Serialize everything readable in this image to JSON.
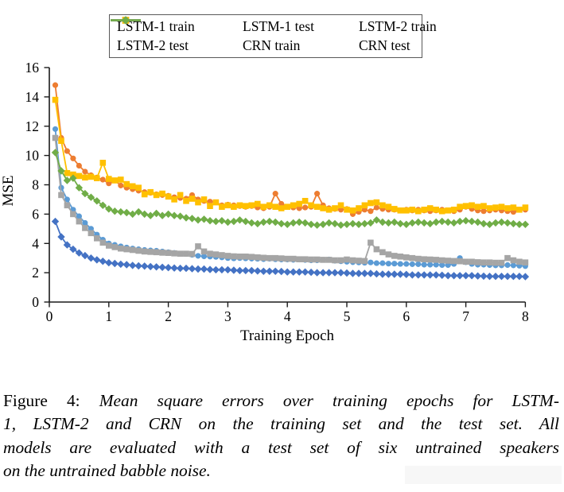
{
  "caption": {
    "prefix": "Figure 4:",
    "lines": [
      "Mean square errors over training epochs for LSTM-",
      "1, LSTM-2 and CRN on the training set and the test set. All",
      "models are evaluated with a test set of six untrained speakers",
      "on the untrained babble noise."
    ]
  },
  "chart_data": {
    "type": "line",
    "title": "",
    "xlabel": "Training Epoch",
    "ylabel": "MSE",
    "xlim": [
      0,
      8
    ],
    "ylim": [
      0,
      16
    ],
    "x_ticks": [
      0,
      1,
      2,
      3,
      4,
      5,
      6,
      7,
      8
    ],
    "y_ticks": [
      0,
      2,
      4,
      6,
      8,
      10,
      12,
      14,
      16
    ],
    "grid": false,
    "legend_position": "top",
    "axis_color": "#1a1a1a",
    "legend_border_color": "#595959",
    "x_start": 0.1,
    "x_step": 0.1,
    "series": [
      {
        "name": "LSTM-1 train",
        "color": "#5B9BD5",
        "marker": "circle",
        "values": [
          11.8,
          7.8,
          7.0,
          6.3,
          5.85,
          5.4,
          5.0,
          4.6,
          4.25,
          4.0,
          3.9,
          3.8,
          3.72,
          3.65,
          3.6,
          3.55,
          3.52,
          3.5,
          3.45,
          3.4,
          3.35,
          3.3,
          3.28,
          3.22,
          3.15,
          3.12,
          3.1,
          3.08,
          3.05,
          3.0,
          2.98,
          3.0,
          2.98,
          2.96,
          2.95,
          2.93,
          2.95,
          2.92,
          2.9,
          2.9,
          2.88,
          2.9,
          2.87,
          2.85,
          2.85,
          2.88,
          2.9,
          2.82,
          2.78,
          2.75,
          2.72,
          2.7,
          2.68,
          2.7,
          2.65,
          2.65,
          2.62,
          2.62,
          2.6,
          2.6,
          2.58,
          2.58,
          2.55,
          2.55,
          2.55,
          2.52,
          2.52,
          2.6,
          3.0,
          2.72,
          2.6,
          2.55,
          2.55,
          2.52,
          2.5,
          2.5,
          2.52,
          2.5,
          2.48,
          2.45
        ]
      },
      {
        "name": "LSTM-1 test",
        "color": "#ED7D31",
        "marker": "circle",
        "values": [
          14.8,
          11.2,
          10.3,
          9.8,
          9.3,
          8.9,
          8.65,
          8.5,
          8.35,
          8.1,
          8.3,
          7.95,
          7.8,
          7.7,
          7.6,
          7.5,
          7.45,
          7.35,
          7.3,
          7.25,
          7.15,
          7.1,
          7.05,
          7.3,
          7.0,
          6.9,
          6.85,
          6.8,
          6.6,
          6.65,
          6.6,
          6.55,
          6.5,
          6.55,
          6.45,
          6.4,
          6.5,
          7.4,
          6.7,
          6.5,
          6.45,
          6.4,
          6.45,
          6.5,
          7.4,
          6.6,
          6.4,
          6.35,
          6.3,
          6.35,
          6.0,
          6.15,
          6.3,
          6.2,
          6.45,
          6.35,
          6.3,
          6.3,
          6.25,
          6.3,
          6.25,
          6.3,
          6.25,
          6.2,
          6.25,
          6.3,
          6.25,
          6.2,
          6.3,
          6.5,
          6.35,
          6.25,
          6.2,
          6.25,
          6.3,
          6.25,
          6.2,
          6.15,
          6.3,
          6.3
        ]
      },
      {
        "name": "LSTM-2 train",
        "color": "#A5A5A5",
        "marker": "square",
        "values": [
          11.2,
          7.3,
          6.6,
          6.0,
          5.5,
          5.05,
          4.7,
          4.35,
          4.05,
          3.85,
          3.75,
          3.65,
          3.6,
          3.55,
          3.5,
          3.45,
          3.42,
          3.4,
          3.37,
          3.35,
          3.32,
          3.3,
          3.3,
          3.28,
          3.8,
          3.45,
          3.3,
          3.25,
          3.2,
          3.15,
          3.12,
          3.1,
          3.1,
          3.08,
          3.05,
          3.02,
          3.0,
          3.0,
          2.98,
          2.95,
          2.95,
          2.92,
          2.92,
          2.9,
          2.9,
          2.88,
          2.88,
          2.85,
          2.85,
          2.9,
          2.85,
          2.82,
          2.8,
          4.05,
          3.6,
          3.4,
          3.25,
          3.15,
          3.1,
          3.05,
          3.0,
          2.95,
          2.92,
          2.9,
          2.88,
          2.85,
          2.82,
          2.8,
          2.78,
          2.75,
          2.75,
          2.72,
          2.7,
          2.7,
          2.68,
          2.68,
          3.0,
          2.85,
          2.75,
          2.7
        ]
      },
      {
        "name": "LSTM-2 test",
        "color": "#FFC000",
        "marker": "square",
        "values": [
          13.8,
          11.0,
          8.8,
          8.7,
          8.6,
          8.5,
          8.55,
          8.45,
          9.5,
          8.4,
          8.3,
          8.35,
          8.05,
          7.9,
          7.8,
          7.35,
          7.5,
          7.3,
          7.4,
          7.2,
          7.0,
          7.3,
          6.9,
          7.05,
          6.8,
          7.0,
          6.55,
          6.8,
          6.5,
          6.6,
          6.5,
          6.6,
          6.55,
          6.6,
          6.7,
          6.5,
          6.6,
          6.5,
          6.4,
          6.5,
          6.6,
          6.7,
          6.9,
          6.6,
          6.5,
          6.4,
          6.3,
          6.4,
          6.6,
          6.3,
          6.25,
          6.4,
          6.6,
          6.75,
          6.8,
          6.6,
          6.5,
          6.35,
          6.25,
          6.25,
          6.3,
          6.2,
          6.3,
          6.4,
          6.3,
          6.2,
          6.25,
          6.3,
          6.5,
          6.55,
          6.6,
          6.5,
          6.55,
          6.4,
          6.45,
          6.5,
          6.4,
          6.45,
          6.3,
          6.45
        ]
      },
      {
        "name": "CRN train",
        "color": "#4472C4",
        "marker": "diamond",
        "values": [
          5.5,
          4.45,
          3.9,
          3.6,
          3.35,
          3.17,
          3.0,
          2.88,
          2.78,
          2.68,
          2.63,
          2.58,
          2.55,
          2.5,
          2.47,
          2.45,
          2.42,
          2.4,
          2.37,
          2.35,
          2.32,
          2.3,
          2.3,
          2.27,
          2.25,
          2.25,
          2.22,
          2.2,
          2.2,
          2.2,
          2.17,
          2.15,
          2.15,
          2.15,
          2.12,
          2.1,
          2.1,
          2.1,
          2.08,
          2.05,
          2.05,
          2.05,
          2.05,
          2.03,
          2.0,
          2.0,
          2.0,
          2.0,
          2.0,
          1.98,
          1.95,
          1.95,
          1.95,
          1.95,
          1.92,
          1.9,
          1.9,
          1.9,
          1.9,
          1.88,
          1.85,
          1.85,
          1.85,
          1.85,
          1.85,
          1.83,
          1.8,
          1.8,
          1.8,
          1.8,
          1.8,
          1.78,
          1.77,
          1.75,
          1.75,
          1.75,
          1.75,
          1.75,
          1.75,
          1.73
        ]
      },
      {
        "name": "CRN test",
        "color": "#70AD47",
        "marker": "diamond",
        "values": [
          10.2,
          8.95,
          8.3,
          8.45,
          7.8,
          7.4,
          7.15,
          6.9,
          6.6,
          6.35,
          6.2,
          6.15,
          6.1,
          6.0,
          6.15,
          6.0,
          5.9,
          6.05,
          5.9,
          6.0,
          5.9,
          5.85,
          5.75,
          5.7,
          5.6,
          5.65,
          5.55,
          5.5,
          5.55,
          5.45,
          5.5,
          5.6,
          5.5,
          5.4,
          5.35,
          5.45,
          5.5,
          5.45,
          5.35,
          5.3,
          5.4,
          5.45,
          5.4,
          5.3,
          5.25,
          5.3,
          5.4,
          5.35,
          5.25,
          5.3,
          5.35,
          5.3,
          5.35,
          5.4,
          5.6,
          5.45,
          5.4,
          5.45,
          5.35,
          5.3,
          5.4,
          5.45,
          5.4,
          5.35,
          5.45,
          5.5,
          5.45,
          5.4,
          5.5,
          5.55,
          5.5,
          5.45,
          5.35,
          5.3,
          5.4,
          5.45,
          5.4,
          5.35,
          5.3,
          5.3
        ]
      }
    ]
  }
}
